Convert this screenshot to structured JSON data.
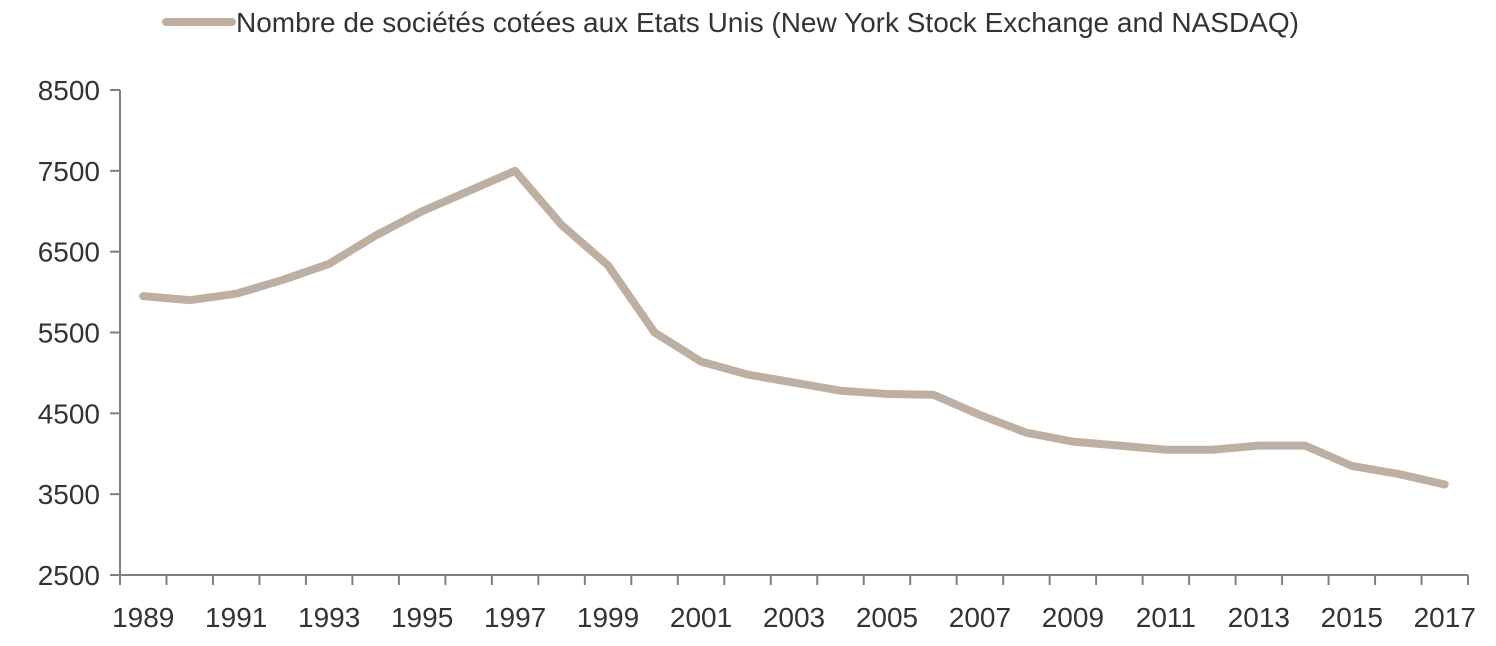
{
  "chart_data": {
    "type": "line",
    "x": [
      1989,
      1990,
      1991,
      1992,
      1993,
      1994,
      1995,
      1996,
      1997,
      1998,
      1999,
      2000,
      2001,
      2002,
      2003,
      2004,
      2005,
      2006,
      2007,
      2008,
      2009,
      2010,
      2011,
      2012,
      2013,
      2014,
      2015,
      2016,
      2017
    ],
    "series": [
      {
        "name": "Nombre de sociétés cotées aux Etats Unis (New York Stock Exchange and NASDAQ)",
        "values": [
          5950,
          5900,
          5980,
          6150,
          6350,
          6700,
          7000,
          7250,
          7500,
          6830,
          6330,
          5500,
          5140,
          4980,
          4880,
          4780,
          4740,
          4730,
          4480,
          4260,
          4150,
          4100,
          4050,
          4050,
          4100,
          4100,
          3850,
          3750,
          3620
        ],
        "color": "#bdb0a3"
      }
    ],
    "x_tick_labels": [
      "1989",
      "1991",
      "1993",
      "1995",
      "1997",
      "1999",
      "2001",
      "2003",
      "2005",
      "2007",
      "2009",
      "2011",
      "2013",
      "2015",
      "2017"
    ],
    "y_ticks": [
      2500,
      3500,
      4500,
      5500,
      6500,
      7500,
      8500
    ],
    "ylim": [
      2500,
      8500
    ],
    "xlim": [
      1989,
      2017
    ],
    "grid": false,
    "legend_position": "top-center",
    "axis_color": "#7f7f7f",
    "text_color": "#333333"
  }
}
